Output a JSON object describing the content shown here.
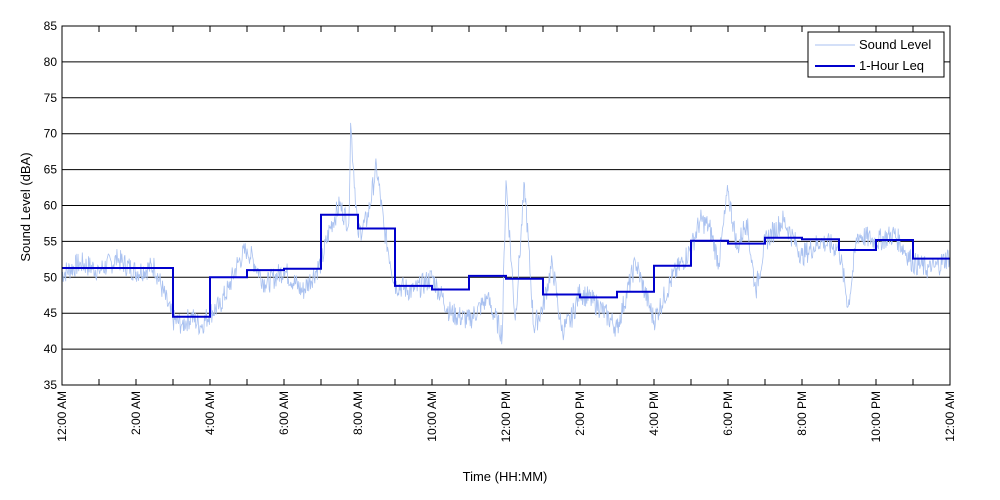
{
  "chart_data": {
    "type": "line",
    "title": "",
    "xlabel": "Time (HH:MM)",
    "ylabel": "Sound Level (dBA)",
    "xlim": [
      0,
      24
    ],
    "ylim": [
      35,
      85
    ],
    "grid": "horizontal",
    "legend_position": "top-right",
    "y_ticks": [
      35,
      40,
      45,
      50,
      55,
      60,
      65,
      70,
      75,
      80,
      85
    ],
    "x_ticks": [
      0,
      2,
      4,
      6,
      8,
      10,
      12,
      14,
      16,
      18,
      20,
      22,
      24
    ],
    "x_tick_labels": [
      "12:00 AM",
      "2:00 AM",
      "4:00 AM",
      "6:00 AM",
      "8:00 AM",
      "10:00 AM",
      "12:00 PM",
      "2:00 PM",
      "4:00 PM",
      "6:00 PM",
      "8:00 PM",
      "10:00 PM",
      "12:00 AM"
    ],
    "series": [
      {
        "name": "Sound Level",
        "color": "#a9c1f0",
        "x": [
          0.0,
          0.5,
          1.0,
          1.5,
          2.0,
          2.5,
          3.0,
          3.25,
          3.5,
          3.75,
          4.0,
          4.25,
          4.5,
          4.75,
          5.0,
          5.5,
          6.0,
          6.5,
          7.0,
          7.25,
          7.5,
          7.75,
          7.8,
          8.0,
          8.25,
          8.5,
          8.7,
          9.0,
          9.5,
          10.0,
          10.5,
          11.0,
          11.5,
          11.9,
          12.0,
          12.25,
          12.5,
          12.75,
          13.0,
          13.25,
          13.5,
          13.75,
          14.0,
          14.5,
          15.0,
          15.5,
          16.0,
          16.5,
          17.0,
          17.25,
          17.5,
          17.75,
          18.0,
          18.25,
          18.5,
          18.75,
          19.0,
          19.5,
          20.0,
          20.5,
          21.0,
          21.25,
          21.5,
          22.0,
          22.5,
          23.0,
          23.5,
          24.0
        ],
        "y": [
          50.5,
          52.0,
          51.0,
          52.5,
          50.8,
          51.5,
          44.0,
          43.5,
          44.5,
          43.2,
          45.0,
          46.0,
          48.5,
          52.0,
          54.0,
          49.0,
          51.0,
          48.0,
          52.0,
          57.0,
          60.0,
          57.5,
          71.5,
          56.0,
          58.0,
          65.5,
          57.0,
          49.0,
          48.0,
          50.0,
          45.0,
          44.0,
          47.0,
          42.0,
          63.5,
          44.0,
          63.0,
          43.0,
          46.0,
          52.0,
          42.5,
          44.0,
          48.0,
          46.0,
          43.0,
          52.0,
          44.0,
          50.0,
          54.0,
          58.0,
          57.0,
          52.0,
          62.0,
          54.0,
          58.0,
          48.0,
          55.0,
          58.0,
          53.0,
          55.0,
          54.0,
          46.0,
          56.0,
          55.0,
          56.0,
          52.0,
          51.0,
          53.0
        ]
      },
      {
        "name": "1-Hour Leq",
        "color": "#0000cc",
        "step": "post",
        "x": [
          0,
          1,
          2,
          3,
          4,
          5,
          6,
          7,
          8,
          9,
          10,
          11,
          12,
          13,
          14,
          15,
          16,
          17,
          18,
          19,
          20,
          21,
          22,
          23
        ],
        "y": [
          51.3,
          51.3,
          51.3,
          44.5,
          50.0,
          51.0,
          51.2,
          58.7,
          56.8,
          48.8,
          48.3,
          50.2,
          49.8,
          47.6,
          47.2,
          48.0,
          51.6,
          55.1,
          54.7,
          55.5,
          55.3,
          53.8,
          55.2,
          52.6
        ]
      }
    ]
  }
}
